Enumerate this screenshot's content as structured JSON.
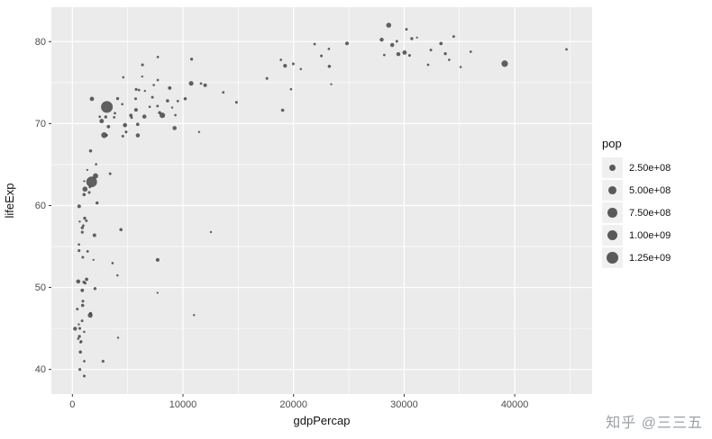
{
  "chart_data": {
    "type": "scatter",
    "title": "",
    "xlabel": "gdpPercap",
    "ylabel": "lifeExp",
    "legend_position": "right",
    "grid": true,
    "point_color": "#3f3f3f",
    "panel_bg": "#ebebeb",
    "grid_color": "#ffffff",
    "xlim": [
      -1900,
      47000
    ],
    "ylim": [
      37.0,
      84.2
    ],
    "x_ticks": [
      0,
      10000,
      20000,
      30000,
      40000
    ],
    "x_tick_labels": [
      "0",
      "10000",
      "20000",
      "30000",
      "40000"
    ],
    "x_minor_ticks": [
      5000,
      15000,
      25000,
      35000,
      45000
    ],
    "y_ticks": [
      40,
      50,
      60,
      70,
      80
    ],
    "y_tick_labels": [
      "40",
      "50",
      "60",
      "70",
      "80"
    ],
    "y_minor_ticks": [
      45,
      55,
      65,
      75
    ],
    "size_field": "pop",
    "points": [
      [
        726.7,
        42.13,
        25268405
      ],
      [
        4604.2,
        75.65,
        3508512
      ],
      [
        5288.0,
        70.99,
        31287142
      ],
      [
        2773.3,
        41.0,
        10866106
      ],
      [
        8797.6,
        74.34,
        38331121
      ],
      [
        30687.8,
        80.37,
        19546792
      ],
      [
        32417.6,
        78.98,
        8148312
      ],
      [
        23403.6,
        74.8,
        656397
      ],
      [
        1136.4,
        62.01,
        135656790
      ],
      [
        30485.9,
        78.32,
        10311970
      ],
      [
        1372.9,
        54.41,
        7026113
      ],
      [
        3413.3,
        63.88,
        8445134
      ],
      [
        6018.9,
        74.09,
        4165416
      ],
      [
        11003.6,
        46.63,
        1630347
      ],
      [
        8131.2,
        71.01,
        179914212
      ],
      [
        7696.8,
        72.14,
        7661799
      ],
      [
        1037.6,
        50.65,
        12251209
      ],
      [
        446.4,
        47.36,
        7021078
      ],
      [
        896.2,
        56.75,
        12926707
      ],
      [
        2042.1,
        49.86,
        17696293
      ],
      [
        33328.9,
        79.77,
        31902268
      ],
      [
        738.7,
        43.31,
        4048013
      ],
      [
        1156.2,
        50.53,
        8835739
      ],
      [
        10778.8,
        77.86,
        15497046
      ],
      [
        3119.3,
        72.03,
        1280400000
      ],
      [
        5755.3,
        71.68,
        41008227
      ],
      [
        1075.8,
        62.97,
        614382
      ],
      [
        241.2,
        44.97,
        55379852
      ],
      [
        3632.6,
        52.97,
        3328795
      ],
      [
        7723.4,
        78.12,
        3834934
      ],
      [
        1648.8,
        46.83,
        16804784
      ],
      [
        11628.4,
        74.88,
        4481020
      ],
      [
        6340.6,
        77.16,
        11226999
      ],
      [
        17596.2,
        75.51,
        10256295
      ],
      [
        32166.5,
        77.18,
        5374693
      ],
      [
        1908.3,
        53.37,
        447416
      ],
      [
        4563.8,
        68.46,
        8650322
      ],
      [
        5773.0,
        74.17,
        12921234
      ],
      [
        4754.6,
        69.81,
        73312559
      ],
      [
        5351.6,
        70.73,
        6353681
      ],
      [
        7703.5,
        49.35,
        495627
      ],
      [
        589.9,
        55.24,
        4414865
      ],
      [
        530.1,
        50.73,
        67946797
      ],
      [
        28204.6,
        78.37,
        5193039
      ],
      [
        28926.0,
        79.59,
        59925035
      ],
      [
        12521.7,
        56.76,
        1299304
      ],
      [
        660.6,
        58.04,
        1457766
      ],
      [
        30035.8,
        78.67,
        82350671
      ],
      [
        1111.9,
        58.45,
        20550751
      ],
      [
        22514.3,
        78.26,
        10603863
      ],
      [
        4858.3,
        68.98,
        11178650
      ],
      [
        942.7,
        53.68,
        8807818
      ],
      [
        575.7,
        45.5,
        1332459
      ],
      [
        1270.0,
        58.14,
        7607651
      ],
      [
        3099.7,
        68.57,
        6677328
      ],
      [
        30209.0,
        81.5,
        6762476
      ],
      [
        14843.9,
        72.59,
        10083313
      ],
      [
        31163.2,
        80.5,
        288030
      ],
      [
        1746.8,
        62.88,
        1034172547
      ],
      [
        2873.9,
        68.59,
        211060000
      ],
      [
        9240.8,
        69.45,
        66907826
      ],
      [
        4390.7,
        57.05,
        24001816
      ],
      [
        34077.0,
        77.78,
        3879155
      ],
      [
        21905.6,
        79.7,
        6029529
      ],
      [
        27968.1,
        80.24,
        57926999
      ],
      [
        6994.8,
        72.05,
        2664659
      ],
      [
        28604.6,
        82.0,
        127065841
      ],
      [
        3844.9,
        71.26,
        5307470
      ],
      [
        1287.5,
        50.99,
        31386842
      ],
      [
        1646.8,
        66.66,
        22215365
      ],
      [
        19234.0,
        77.05,
        47969150
      ],
      [
        35110.1,
        76.9,
        2111561
      ],
      [
        9313.9,
        71.03,
        3677780
      ],
      [
        1068.7,
        44.59,
        2046772
      ],
      [
        531.5,
        43.75,
        2814651
      ],
      [
        9534.7,
        72.74,
        5368585
      ],
      [
        894.6,
        57.29,
        16473477
      ],
      [
        665.4,
        45.01,
        11824495
      ],
      [
        10206.0,
        73.04,
        22662365
      ],
      [
        951.4,
        48.33,
        10580176
      ],
      [
        1579.0,
        62.25,
        2828858
      ],
      [
        9021.8,
        71.95,
        1200206
      ],
      [
        10742.4,
        74.9,
        102479927
      ],
      [
        2140.9,
        65.03,
        2674234
      ],
      [
        6557.2,
        73.98,
        720230
      ],
      [
        3258.5,
        69.62,
        31167783
      ],
      [
        633.6,
        44.03,
        18473780
      ],
      [
        611.0,
        59.91,
        45598081
      ],
      [
        4072.3,
        51.48,
        1972153
      ],
      [
        1057.2,
        61.34,
        25873917
      ],
      [
        33724.8,
        78.53,
        16122830
      ],
      [
        23189.8,
        79.11,
        3908037
      ],
      [
        2474.5,
        70.84,
        5146848
      ],
      [
        601.1,
        54.5,
        11140655
      ],
      [
        1615.3,
        46.61,
        119901274
      ],
      [
        44684.0,
        79.05,
        4535591
      ],
      [
        19774.8,
        74.19,
        2713462
      ],
      [
        2092.7,
        63.61,
        153403524
      ],
      [
        7356.0,
        74.71,
        2990875
      ],
      [
        3783.7,
        70.76,
        5884491
      ],
      [
        5909.0,
        69.91,
        26769436
      ],
      [
        2650.9,
        70.3,
        82995088
      ],
      [
        12002.2,
        74.67,
        38625976
      ],
      [
        19970.9,
        77.29,
        10433867
      ],
      [
        18855.6,
        77.78,
        3859606
      ],
      [
        6316.2,
        75.74,
        743981
      ],
      [
        7885.4,
        71.32,
        22404337
      ],
      [
        785.7,
        43.41,
        7852401
      ],
      [
        1353.1,
        64.34,
        170372
      ],
      [
        19014.5,
        71.63,
        24501530
      ],
      [
        1519.6,
        61.6,
        10870037
      ],
      [
        7236.1,
        73.21,
        10350028
      ],
      [
        1072.8,
        41.01,
        5359092
      ],
      [
        36023.1,
        78.77,
        4197776
      ],
      [
        13638.8,
        73.8,
        5410052
      ],
      [
        20660.0,
        76.66,
        2011497
      ],
      [
        882.1,
        45.94,
        7753310
      ],
      [
        7710.9,
        53.37,
        44433622
      ],
      [
        24835.5,
        79.78,
        40152517
      ],
      [
        3015.4,
        70.81,
        19576783
      ],
      [
        1993.4,
        56.37,
        37090298
      ],
      [
        4128.1,
        43.87,
        1130269
      ],
      [
        29341.6,
        80.04,
        8954175
      ],
      [
        34481.0,
        80.62,
        7361757
      ],
      [
        4090.9,
        73.05,
        17155814
      ],
      [
        23235.4,
        76.99,
        22454239
      ],
      [
        899.1,
        49.65,
        34593779
      ],
      [
        5913.2,
        68.56,
        62806748
      ],
      [
        982.3,
        57.56,
        4977378
      ],
      [
        11460.6,
        68.98,
        1101832
      ],
      [
        5722.9,
        73.04,
        9770575
      ],
      [
        6508.1,
        70.85,
        67308928
      ],
      [
        927.7,
        47.81,
        24739869
      ],
      [
        29479.0,
        78.47,
        59912431
      ],
      [
        39097.1,
        77.31,
        287675526
      ],
      [
        7727.0,
        75.31,
        3363085
      ],
      [
        8605.0,
        72.77,
        24287670
      ],
      [
        1764.5,
        73.02,
        80908147
      ],
      [
        4515.5,
        72.37,
        3389578
      ],
      [
        2234.8,
        60.31,
        18701257
      ],
      [
        1071.6,
        39.19,
        10595811
      ],
      [
        672.0,
        40.0,
        11926563
      ]
    ]
  },
  "legend": {
    "title": "pop",
    "items": [
      {
        "label": "2.50e+08",
        "value": 250000000
      },
      {
        "label": "5.00e+08",
        "value": 500000000
      },
      {
        "label": "7.50e+08",
        "value": 750000000
      },
      {
        "label": "1.00e+09",
        "value": 1000000000
      },
      {
        "label": "1.25e+09",
        "value": 1250000000
      }
    ]
  },
  "watermark": {
    "text": "知乎 @三三五"
  },
  "colors": {
    "panel_bg": "#ebebeb",
    "grid": "#ffffff",
    "point": "#3f3f3f",
    "tick_text": "#4d4d4d",
    "legend_key_bg": "#f0f0f0"
  }
}
